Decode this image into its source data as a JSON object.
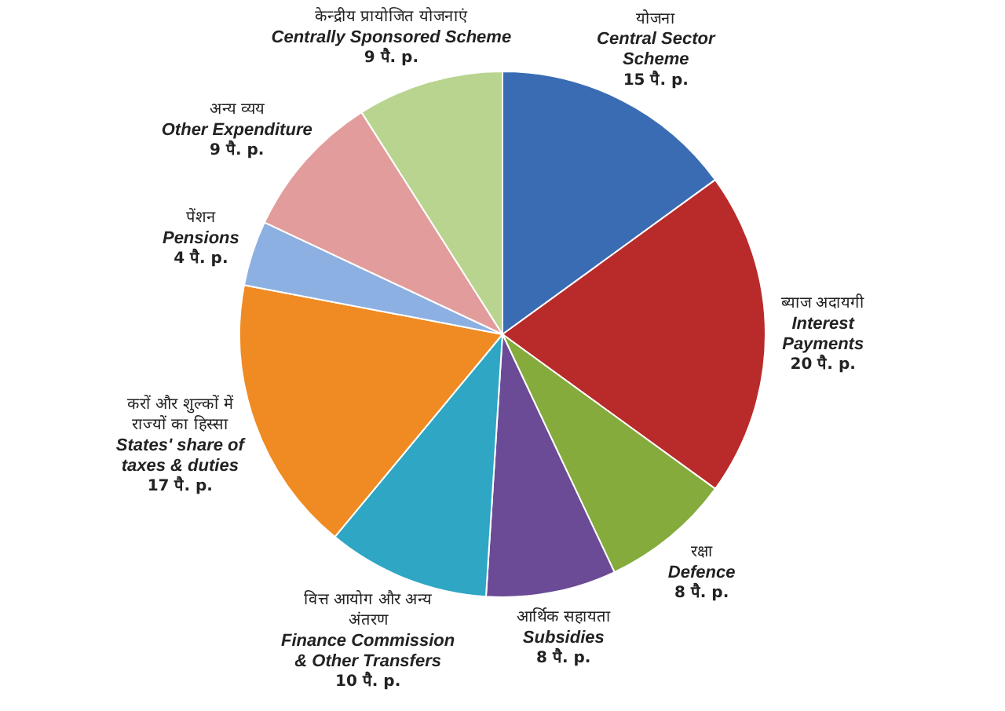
{
  "chart_data": {
    "type": "pie",
    "legend": false,
    "categories": [
      "योजना\nCentral Sector\nScheme",
      "ब्याज अदायगी\nInterest\nPayments",
      "रक्षा\nDefence",
      "आर्थिक सहायता\nSubsidies",
      "वित्त आयोग और अन्य\nअंतरण\nFinance Commission\n& Other Transfers",
      "करों और शुल्कों में\nराज्यों का हिस्सा\nStates' share of\ntaxes & duties",
      "पेंशन\nPensions",
      "अन्य व्यय\nOther Expenditure",
      "केन्द्रीय प्रायोजित योजनाएं\nCentrally Sponsored Scheme"
    ],
    "values": [
      15,
      20,
      8,
      8,
      10,
      17,
      4,
      9,
      9
    ],
    "value_labels": [
      "15 पै. p.",
      "20 पै. p.",
      "8 पै. p.",
      "8 पै. p.",
      "10 पै. p.",
      "17 पै. p.",
      "4 पै. p.",
      "9 पै. p.",
      "9 पै. p."
    ],
    "colors": [
      "#3a6cb4",
      "#b92b2b",
      "#84ab3c",
      "#6b4a96",
      "#2ea6c4",
      "#f08a22",
      "#8db0e2",
      "#e29c9c",
      "#b8d48e"
    ]
  }
}
